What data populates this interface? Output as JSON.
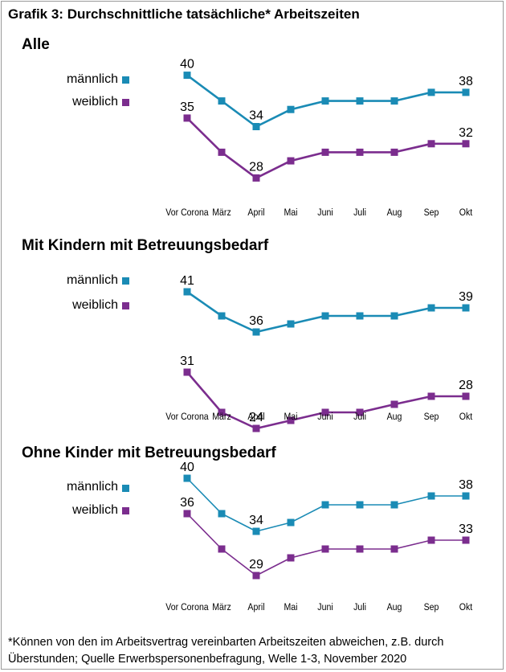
{
  "title": "Grafik 3: Durchschnittliche tatsächliche* Arbeitszeiten",
  "legend": {
    "male_label": "männlich",
    "female_label": "weiblich",
    "male_color": "#1a8bb5",
    "female_color": "#7b2d8e"
  },
  "chart_data": [
    {
      "type": "line",
      "title": "Alle",
      "categories": [
        "Vor Corona",
        "März",
        "April",
        "Mai",
        "Juni",
        "Juli",
        "Aug",
        "Sep",
        "Okt"
      ],
      "series": [
        {
          "name": "männlich",
          "values": [
            40,
            37,
            34,
            36,
            37,
            37,
            37,
            38,
            38
          ]
        },
        {
          "name": "weiblich",
          "values": [
            35,
            31,
            28,
            30,
            31,
            31,
            31,
            32,
            32
          ]
        }
      ],
      "data_labels": {
        "männlich": [
          40,
          34,
          38
        ],
        "weiblich": [
          35,
          28,
          32
        ]
      }
    },
    {
      "type": "line",
      "title": "Mit Kindern mit Betreuungsbedarf",
      "categories": [
        "Vor Corona",
        "März",
        "April",
        "Mai",
        "Juni",
        "Juli",
        "Aug",
        "Sep",
        "Okt"
      ],
      "series": [
        {
          "name": "männlich",
          "values": [
            41,
            38,
            36,
            37,
            38,
            38,
            38,
            39,
            39
          ]
        },
        {
          "name": "weiblich",
          "values": [
            31,
            26,
            24,
            25,
            26,
            26,
            27,
            28,
            28
          ]
        }
      ],
      "data_labels": {
        "männlich": [
          41,
          36,
          39
        ],
        "weiblich": [
          31,
          24,
          28
        ]
      }
    },
    {
      "type": "line",
      "title": "Ohne Kinder mit Betreuungsbedarf",
      "categories": [
        "Vor Corona",
        "März",
        "April",
        "Mai",
        "Juni",
        "Juli",
        "Aug",
        "Sep",
        "Okt"
      ],
      "series": [
        {
          "name": "männlich",
          "values": [
            40,
            36,
            34,
            35,
            37,
            37,
            37,
            38,
            38
          ]
        },
        {
          "name": "weiblich",
          "values": [
            36,
            32,
            29,
            31,
            32,
            32,
            32,
            33,
            33
          ]
        }
      ],
      "data_labels": {
        "männlich": [
          40,
          34,
          38
        ],
        "weiblich": [
          36,
          29,
          33
        ]
      }
    }
  ],
  "footnote": "*Können von den im Arbeitsvertrag vereinbarten Arbeitszeiten abweichen, z.B. durch Überstunden; Quelle Erwerbspersonenbefragung, Welle 1-3, November 2020"
}
